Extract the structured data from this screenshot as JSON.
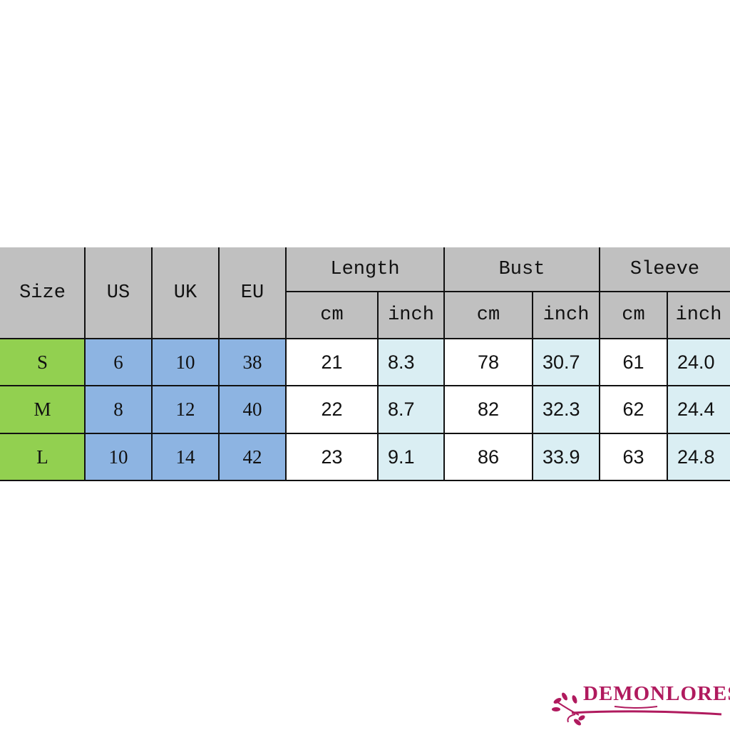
{
  "size_chart": {
    "headers": {
      "size": "Size",
      "us": "US",
      "uk": "UK",
      "eu": "EU",
      "length": "Length",
      "bust": "Bust",
      "sleeve": "Sleeve",
      "units": [
        "cm",
        "inch",
        "cm",
        "inch",
        "cm",
        "inch"
      ]
    },
    "rows": [
      {
        "size": "S",
        "us": "6",
        "uk": "10",
        "eu": "38",
        "length_cm": "21",
        "length_inch": "8.3",
        "bust_cm": "78",
        "bust_inch": "30.7",
        "sleeve_cm": "61",
        "sleeve_inch": "24.0"
      },
      {
        "size": "M",
        "us": "8",
        "uk": "12",
        "eu": "40",
        "length_cm": "22",
        "length_inch": "8.7",
        "bust_cm": "82",
        "bust_inch": "32.3",
        "sleeve_cm": "62",
        "sleeve_inch": "24.4"
      },
      {
        "size": "L",
        "us": "10",
        "uk": "14",
        "eu": "42",
        "length_cm": "23",
        "length_inch": "9.1",
        "bust_cm": "86",
        "bust_inch": "33.9",
        "sleeve_cm": "63",
        "sleeve_inch": "24.8"
      }
    ],
    "colors": {
      "header": "#c0c0c0",
      "size_column": "#92d050",
      "conversion_columns": "#8db4e2",
      "inch_columns": "#daeef3"
    }
  },
  "watermark": {
    "brand": "DEMONLORES"
  }
}
